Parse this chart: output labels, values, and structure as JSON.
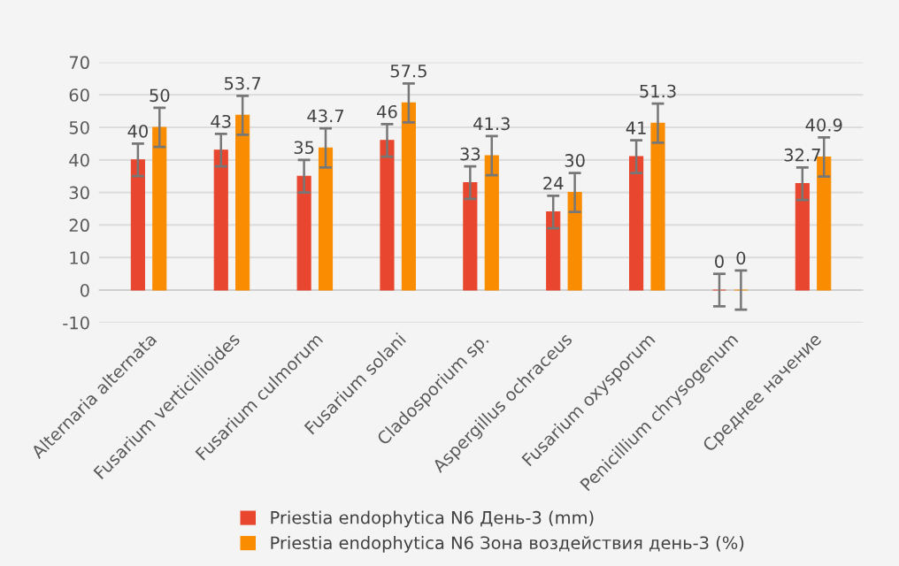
{
  "chart_data": {
    "type": "bar",
    "categories": [
      "Alternaria alternata",
      "Fusarium verticillioides",
      "Fusarium culmorum",
      "Fusarium solani",
      "Cladosporium sp.",
      "Aspergillus ochraceus",
      "Fusarium oxysporum",
      "Penicillium chrysogenum",
      "Среднее начение"
    ],
    "series": [
      {
        "name": "Priestia endophytica N6 День-3 (mm)",
        "color": "#e8462e",
        "values": [
          40,
          43,
          35,
          46,
          33,
          24,
          41,
          0,
          32.7
        ],
        "errors": [
          5,
          5,
          5,
          5,
          5,
          5,
          5,
          5,
          5
        ]
      },
      {
        "name": "Priestia endophytica N6 Зона воздействия день-3 (%)",
        "color": "#f98c00",
        "values": [
          50,
          53.7,
          43.7,
          57.5,
          41.3,
          30,
          51.3,
          0,
          40.9
        ],
        "errors": [
          6,
          6,
          6,
          6,
          6,
          6,
          6,
          6,
          6
        ]
      }
    ],
    "ylim": [
      -10,
      70
    ],
    "yticks": [
      -10,
      0,
      10,
      20,
      30,
      40,
      50,
      60,
      70
    ],
    "grid": "y",
    "legend": "bottom",
    "data_labels": true
  }
}
